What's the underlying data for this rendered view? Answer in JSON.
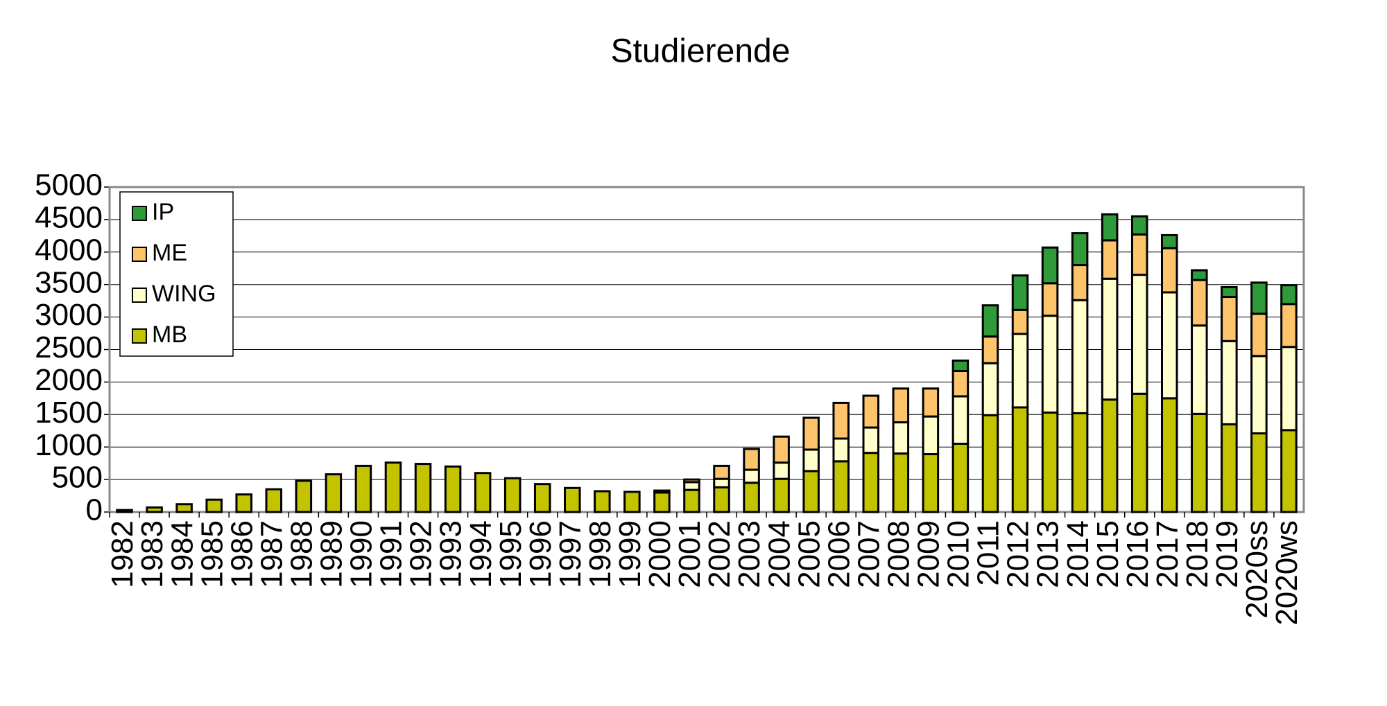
{
  "chart_data": {
    "type": "stacked_bar",
    "title": "Studierende",
    "categories": [
      "1982",
      "1983",
      "1984",
      "1985",
      "1986",
      "1987",
      "1988",
      "1989",
      "1990",
      "1991",
      "1992",
      "1993",
      "1994",
      "1995",
      "1996",
      "1997",
      "1998",
      "1999",
      "2000",
      "2001",
      "2002",
      "2003",
      "2004",
      "2005",
      "2006",
      "2007",
      "2008",
      "2009",
      "2010",
      "2011",
      "2012",
      "2013",
      "2014",
      "2015",
      "2016",
      "2017",
      "2018",
      "2019",
      "2020ss",
      "2020ws"
    ],
    "series": [
      {
        "name": "MB",
        "color": "#c3c300",
        "values": [
          30,
          70,
          120,
          190,
          270,
          350,
          480,
          580,
          710,
          760,
          740,
          700,
          600,
          520,
          430,
          370,
          320,
          310,
          300,
          340,
          380,
          450,
          510,
          630,
          780,
          910,
          900,
          890,
          1050,
          1490,
          1610,
          1530,
          1520,
          1730,
          1820,
          1750,
          1510,
          1350,
          1210,
          1260
        ]
      },
      {
        "name": "WING",
        "color": "#ffffcc",
        "values": [
          0,
          0,
          0,
          0,
          0,
          0,
          0,
          0,
          0,
          0,
          0,
          0,
          0,
          0,
          0,
          0,
          0,
          0,
          30,
          120,
          130,
          200,
          250,
          330,
          350,
          390,
          480,
          580,
          730,
          800,
          1130,
          1490,
          1740,
          1860,
          1830,
          1630,
          1360,
          1280,
          1190,
          1280
        ]
      },
      {
        "name": "ME",
        "color": "#fdc46c",
        "values": [
          0,
          0,
          0,
          0,
          0,
          0,
          0,
          0,
          0,
          0,
          0,
          0,
          0,
          0,
          0,
          0,
          0,
          0,
          0,
          40,
          200,
          320,
          400,
          490,
          550,
          490,
          520,
          430,
          390,
          410,
          370,
          500,
          540,
          590,
          620,
          680,
          700,
          680,
          650,
          660
        ]
      },
      {
        "name": "IP",
        "color": "#2e9a3a",
        "values": [
          0,
          0,
          0,
          0,
          0,
          0,
          0,
          0,
          0,
          0,
          0,
          0,
          0,
          0,
          0,
          0,
          0,
          0,
          0,
          0,
          0,
          0,
          0,
          0,
          0,
          0,
          0,
          0,
          160,
          480,
          530,
          550,
          490,
          400,
          280,
          200,
          150,
          150,
          480,
          290
        ]
      }
    ],
    "ylim": [
      0,
      5000
    ],
    "yticks": [
      0,
      500,
      1000,
      1500,
      2000,
      2500,
      3000,
      3500,
      4000,
      4500,
      5000
    ],
    "grid": true,
    "legend": "upper-left"
  }
}
